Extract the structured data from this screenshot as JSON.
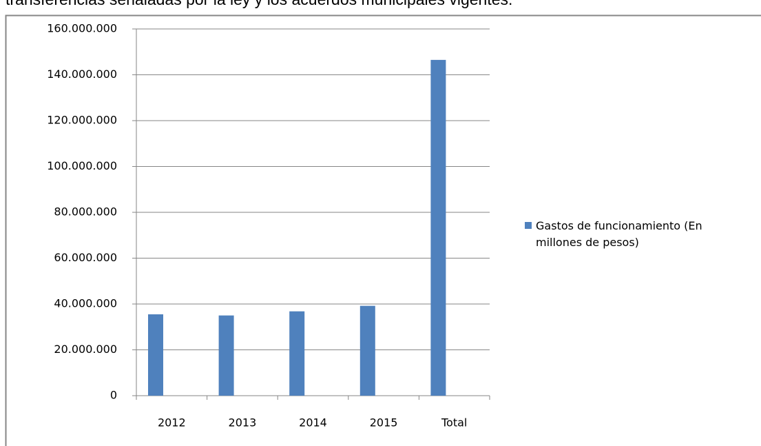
{
  "header": {
    "text": "transferencias señaladas por la ley y los acuerdos municipales vigentes."
  },
  "chart_data": {
    "type": "bar",
    "categories": [
      "2012",
      "2013",
      "2014",
      "2015",
      "Total"
    ],
    "series": [
      {
        "name": "Gastos de funcionamiento (En millones de pesos)",
        "color": "#4f81bd",
        "values": [
          35500000,
          35000000,
          36800000,
          39200000,
          146500000
        ]
      }
    ],
    "ylim": [
      0,
      160000000
    ],
    "yticks": [
      0,
      {
        "value": 20000000,
        "label": "20.000.000"
      },
      {
        "value": 40000000,
        "label": "40.000.000"
      },
      {
        "value": 60000000,
        "label": "60.000.000"
      },
      {
        "value": 80000000,
        "label": "80.000.000"
      },
      {
        "value": 100000000,
        "label": "100.000.000"
      },
      {
        "value": 120000000,
        "label": "120.000.000"
      },
      {
        "value": 140000000,
        "label": "140.000.000"
      },
      {
        "value": 160000000,
        "label": "160.000.000"
      }
    ],
    "grid": true,
    "legend": "right"
  }
}
